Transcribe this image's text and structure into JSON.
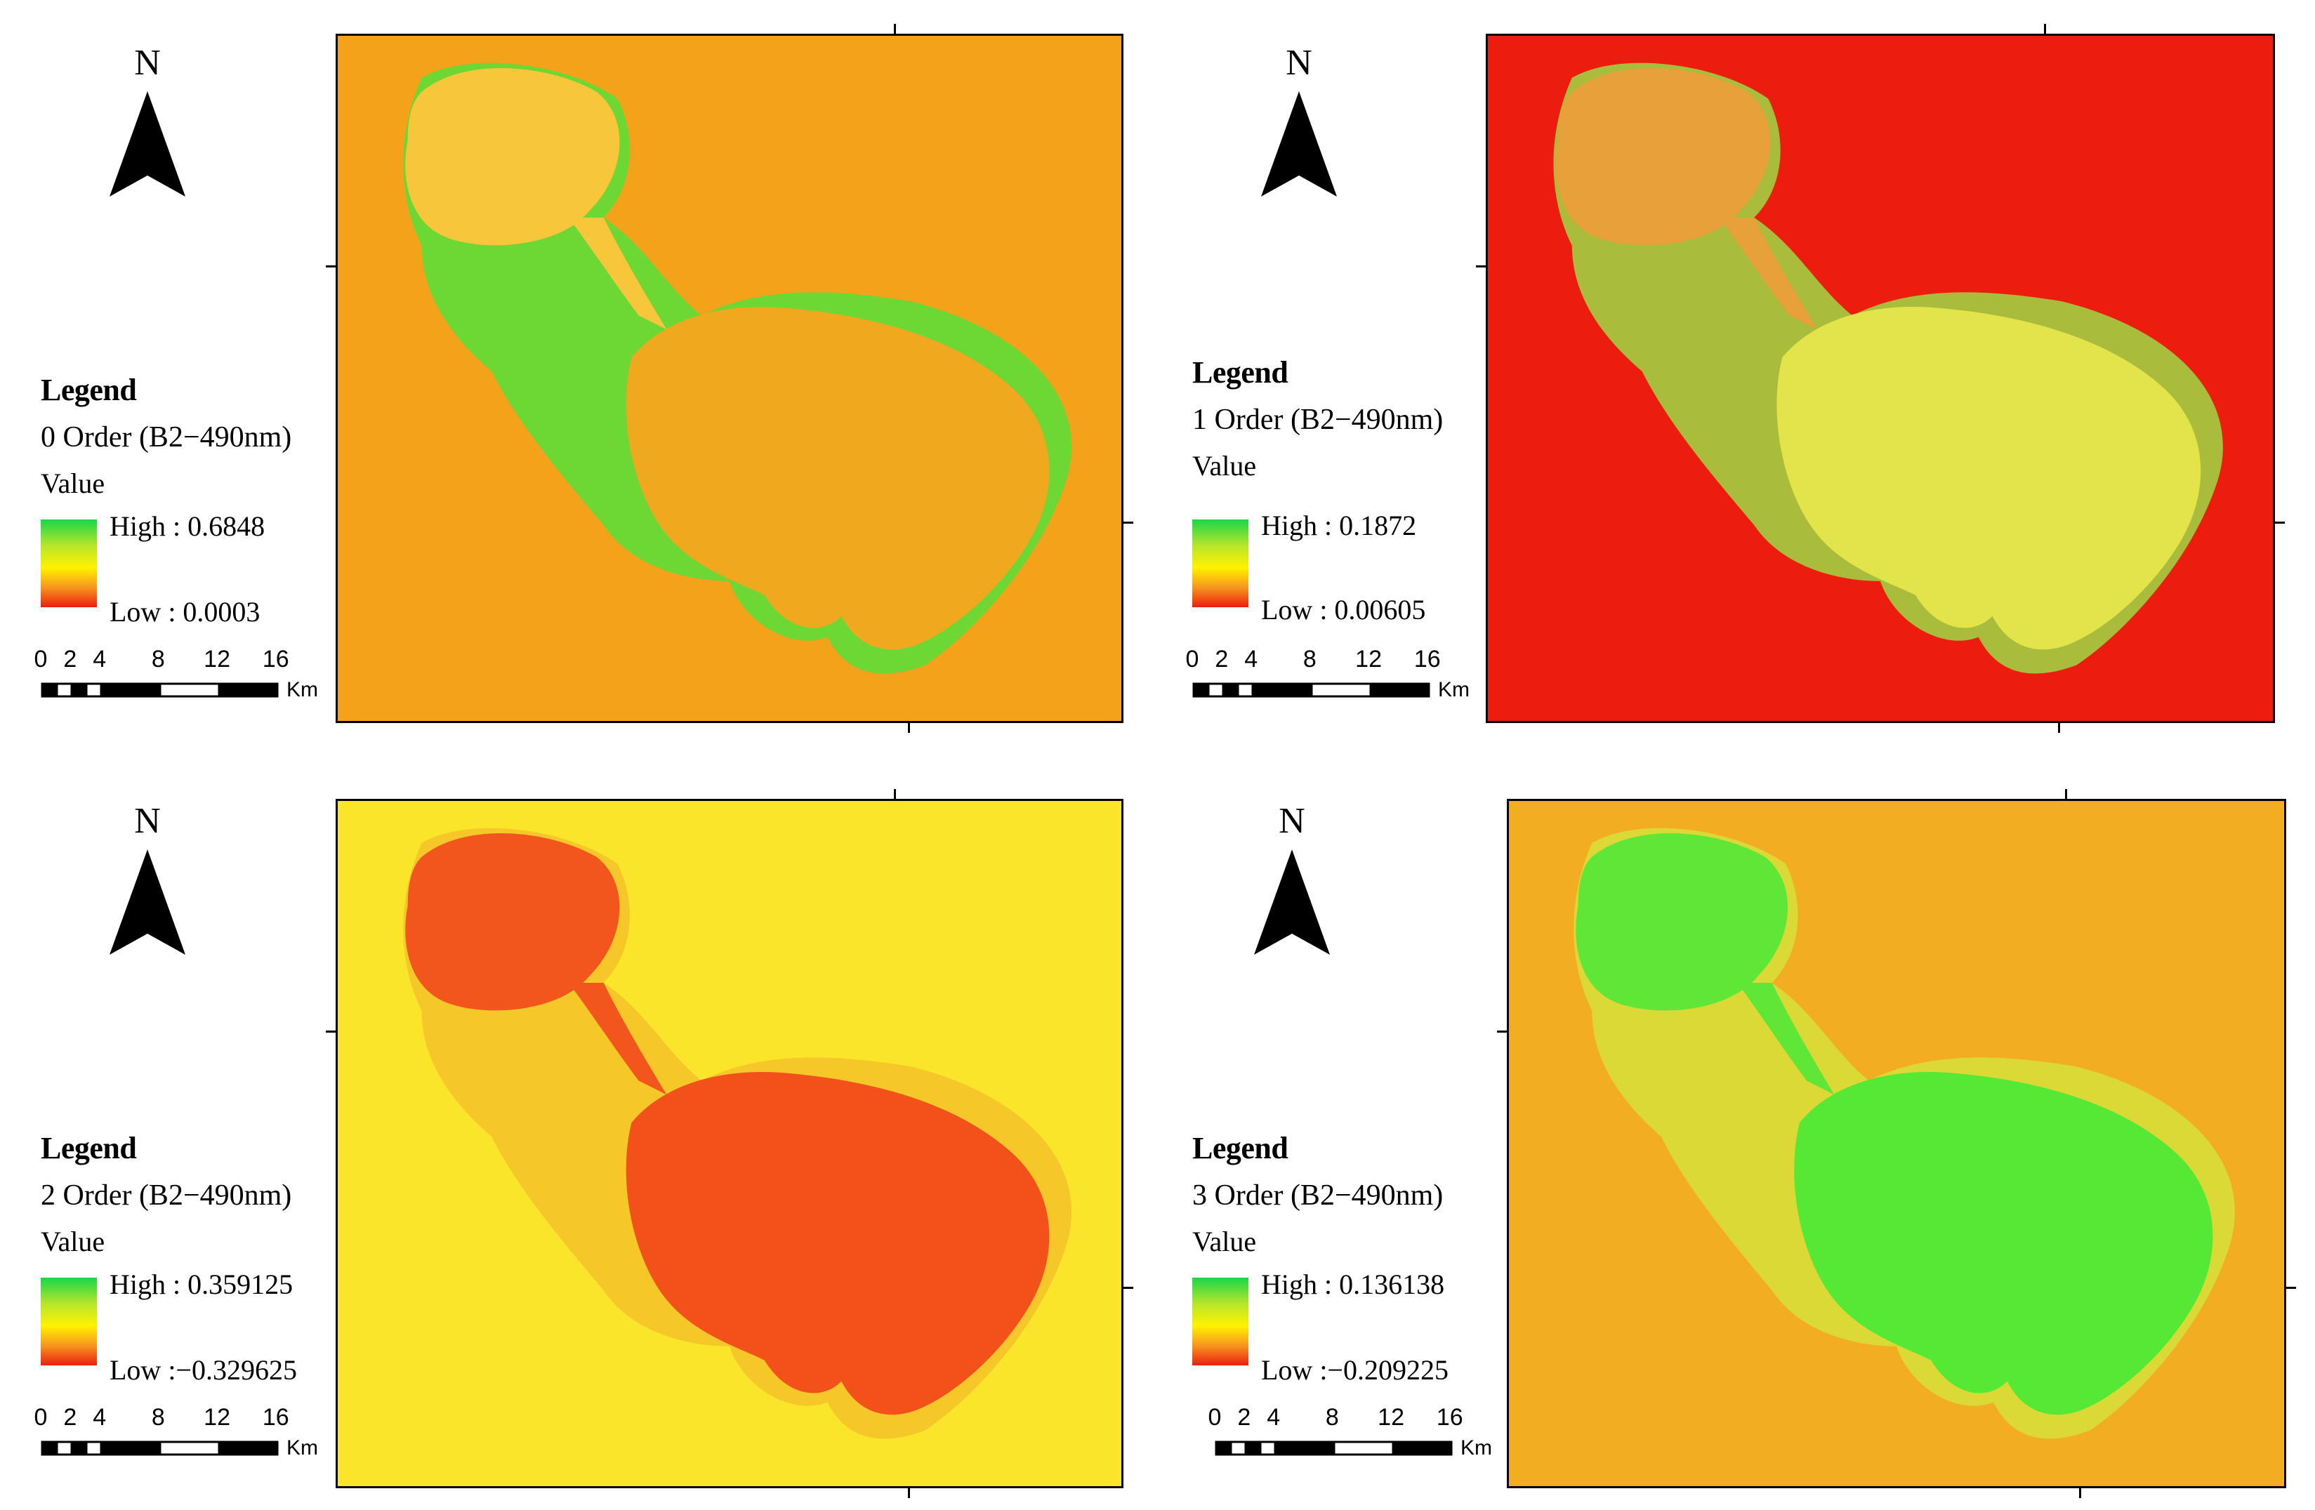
{
  "panels": [
    {
      "north": "N",
      "legend_title": "Legend",
      "layer": "0 Order (B2−490nm)",
      "value_label": "Value",
      "high": "High : 0.6848",
      "low": "Low : 0.0003",
      "scale_labels": [
        "0",
        "2",
        "4",
        "8",
        "12",
        "16"
      ],
      "scale_unit": "Km",
      "map_colors": {
        "background": "#f4a21a",
        "lake": "#f0a81e",
        "shore": "#55e03a",
        "lake_north": "#f7c63a"
      }
    },
    {
      "north": "N",
      "legend_title": "Legend",
      "layer": "1 Order (B2−490nm)",
      "value_label": "Value",
      "high": "High : 0.1872",
      "low": "Low : 0.00605",
      "scale_labels": [
        "0",
        "2",
        "4",
        "8",
        "12",
        "16"
      ],
      "scale_unit": "Km",
      "map_colors": {
        "background": "#ec1c0e",
        "lake": "#e3e34a",
        "shore": "#9ed843",
        "lake_north": "#e7a03a"
      }
    },
    {
      "north": "N",
      "legend_title": "Legend",
      "layer": "2 Order (B2−490nm)",
      "value_label": "Value",
      "high": "High : 0.359125",
      "low": "Low :−0.329625",
      "scale_labels": [
        "0",
        "2",
        "4",
        "8",
        "12",
        "16"
      ],
      "scale_unit": "Km",
      "map_colors": {
        "background": "#fae52a",
        "lake": "#f2521a",
        "shore": "#f3c229",
        "lake_north": "#f2561c"
      }
    },
    {
      "north": "N",
      "legend_title": "Legend",
      "layer": "3 Order (B2−490nm)",
      "value_label": "Value",
      "high": "High : 0.136138",
      "low": "Low :−0.209225",
      "scale_labels": [
        "0",
        "2",
        "4",
        "8",
        "12",
        "16"
      ],
      "scale_unit": "Km",
      "map_colors": {
        "background": "#f2ad22",
        "lake": "#55e834",
        "shore": "#d7e13a",
        "lake_north": "#5fe636"
      }
    }
  ]
}
